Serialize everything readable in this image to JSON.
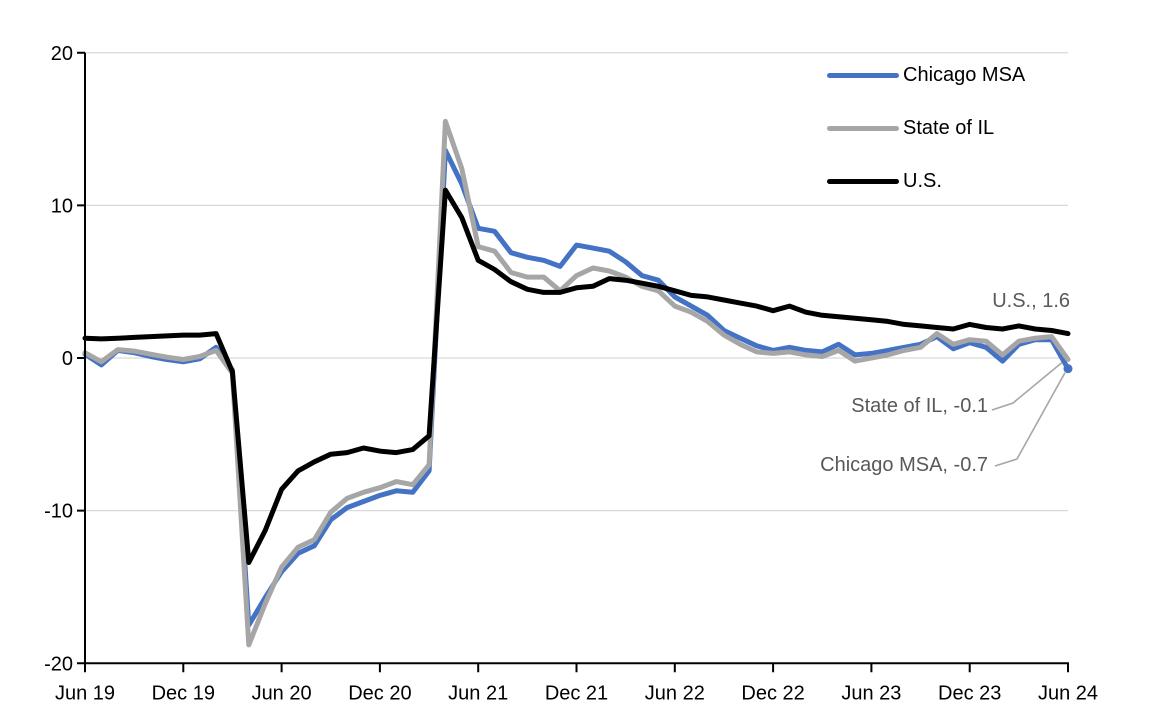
{
  "chart_data": {
    "type": "line",
    "title": "",
    "xlabel": "",
    "ylabel": "",
    "ylim": [
      -20,
      20
    ],
    "grid": true,
    "legend_position": "top-right",
    "gridline_color": "#D9D9D9",
    "axis_color": "#000000",
    "annotation_color": "#595959",
    "leader_line_color": "#A6A6A6",
    "y_ticks": [
      20,
      10,
      0,
      -10,
      -20
    ],
    "x_tick_labels": [
      "Jun 19",
      "Dec 19",
      "Jun 20",
      "Dec 20",
      "Jun 21",
      "Dec 21",
      "Jun 22",
      "Dec 22",
      "Jun 23",
      "Dec 23",
      "Jun 24"
    ],
    "x": [
      "Jun 19",
      "Jul 19",
      "Aug 19",
      "Sep 19",
      "Oct 19",
      "Nov 19",
      "Dec 19",
      "Jan 20",
      "Feb 20",
      "Mar 20",
      "Apr 20",
      "May 20",
      "Jun 20",
      "Jul 20",
      "Aug 20",
      "Sep 20",
      "Oct 20",
      "Nov 20",
      "Dec 20",
      "Jan 21",
      "Feb 21",
      "Mar 21",
      "Apr 21",
      "May 21",
      "Jun 21",
      "Jul 21",
      "Aug 21",
      "Sep 21",
      "Oct 21",
      "Nov 21",
      "Dec 21",
      "Jan 22",
      "Feb 22",
      "Mar 22",
      "Apr 22",
      "May 22",
      "Jun 22",
      "Jul 22",
      "Aug 22",
      "Sep 22",
      "Oct 22",
      "Nov 22",
      "Dec 22",
      "Jan 23",
      "Feb 23",
      "Mar 23",
      "Apr 23",
      "May 23",
      "Jun 23",
      "Jul 23",
      "Aug 23",
      "Sep 23",
      "Oct 23",
      "Nov 23",
      "Dec 23",
      "Jan 24",
      "Feb 24",
      "Mar 24",
      "Apr 24",
      "May 24",
      "Jun 24"
    ],
    "series": [
      {
        "name": "Chicago MSA",
        "color": "#4472C4",
        "stroke_width": 5,
        "end_marker": true,
        "values": [
          0.25,
          -0.45,
          0.5,
          0.35,
          0.1,
          -0.1,
          -0.25,
          -0.05,
          0.7,
          -0.8,
          -17.5,
          -15.7,
          -14.0,
          -12.8,
          -12.3,
          -10.6,
          -9.8,
          -9.4,
          -9.0,
          -8.7,
          -8.8,
          -7.4,
          13.6,
          11.4,
          8.5,
          8.3,
          6.9,
          6.6,
          6.4,
          6.0,
          7.4,
          7.2,
          7.0,
          6.3,
          5.4,
          5.1,
          4.0,
          3.4,
          2.8,
          1.8,
          1.3,
          0.8,
          0.5,
          0.7,
          0.5,
          0.4,
          0.9,
          0.2,
          0.3,
          0.5,
          0.7,
          0.9,
          1.4,
          0.6,
          1.0,
          0.7,
          -0.2,
          0.9,
          1.2,
          1.2,
          -0.7
        ]
      },
      {
        "name": "State of IL",
        "color": "#A6A6A6",
        "stroke_width": 5,
        "end_marker": false,
        "values": [
          0.35,
          -0.25,
          0.55,
          0.45,
          0.25,
          0.05,
          -0.1,
          0.1,
          0.5,
          -1.0,
          -18.8,
          -16.1,
          -13.7,
          -12.4,
          -11.9,
          -10.1,
          -9.2,
          -8.8,
          -8.5,
          -8.1,
          -8.3,
          -7.0,
          15.5,
          12.4,
          7.3,
          7.0,
          5.6,
          5.3,
          5.3,
          4.4,
          5.4,
          5.9,
          5.7,
          5.3,
          4.7,
          4.4,
          3.4,
          3.0,
          2.4,
          1.5,
          0.9,
          0.4,
          0.3,
          0.4,
          0.2,
          0.1,
          0.5,
          -0.2,
          0.0,
          0.2,
          0.5,
          0.7,
          1.6,
          0.9,
          1.2,
          1.1,
          0.2,
          1.1,
          1.3,
          1.4,
          -0.1
        ]
      },
      {
        "name": "U.S.",
        "color": "#000000",
        "stroke_width": 5,
        "end_marker": false,
        "values": [
          1.3,
          1.25,
          1.3,
          1.35,
          1.4,
          1.45,
          1.5,
          1.5,
          1.6,
          -0.9,
          -13.4,
          -11.3,
          -8.6,
          -7.4,
          -6.8,
          -6.3,
          -6.2,
          -5.9,
          -6.1,
          -6.2,
          -6.0,
          -5.1,
          11.0,
          9.2,
          6.4,
          5.8,
          5.0,
          4.5,
          4.3,
          4.3,
          4.6,
          4.7,
          5.2,
          5.1,
          4.9,
          4.7,
          4.4,
          4.1,
          4.0,
          3.8,
          3.6,
          3.4,
          3.1,
          3.4,
          3.0,
          2.8,
          2.7,
          2.6,
          2.5,
          2.4,
          2.2,
          2.1,
          2.0,
          1.9,
          2.2,
          2.0,
          1.9,
          2.1,
          1.9,
          1.8,
          1.6
        ]
      }
    ],
    "annotations": {
      "us": "U.S., 1.6",
      "il": "State of IL, -0.1",
      "chicago": "Chicago MSA, -0.7"
    },
    "end_values": {
      "us": 1.6,
      "il": -0.1,
      "chicago": -0.7
    }
  },
  "legend": {
    "items": [
      {
        "label": "Chicago MSA",
        "color": "#4472C4"
      },
      {
        "label": "State of IL",
        "color": "#A6A6A6"
      },
      {
        "label": "U.S.",
        "color": "#000000"
      }
    ]
  }
}
